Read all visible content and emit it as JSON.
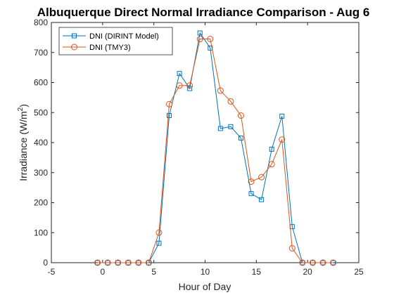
{
  "chart_data": {
    "type": "line",
    "title": "Albuquerque Direct Normal Irradiance Comparison - Aug 6",
    "xlabel": "Hour of Day",
    "ylabel_main": "Irradiance (W/m",
    "ylabel_sup": "2",
    "ylabel_close": ")",
    "xlim": [
      -5,
      25
    ],
    "ylim": [
      0,
      800
    ],
    "xticks": [
      -5,
      0,
      5,
      10,
      15,
      20,
      25
    ],
    "yticks": [
      0,
      100,
      200,
      300,
      400,
      500,
      600,
      700,
      800
    ],
    "grid": false,
    "legend_position": "top-left",
    "series": [
      {
        "name": "DNI (DIRINT Model)",
        "color": "#0072BD",
        "marker": "square",
        "x": [
          -0.5,
          0.5,
          1.5,
          2.5,
          3.5,
          4.5,
          5.5,
          6.5,
          7.5,
          8.5,
          9.5,
          10.5,
          11.5,
          12.5,
          13.5,
          14.5,
          15.5,
          16.5,
          17.5,
          18.5,
          19.5,
          20.5,
          21.5,
          22.5
        ],
        "y": [
          0,
          0,
          0,
          0,
          0,
          0,
          65,
          490,
          630,
          580,
          765,
          715,
          447,
          453,
          415,
          230,
          210,
          378,
          488,
          120,
          0,
          0,
          0,
          0
        ]
      },
      {
        "name": "DNI (TMY3)",
        "color": "#D95319",
        "marker": "circle",
        "x": [
          -0.5,
          0.5,
          1.5,
          2.5,
          3.5,
          4.5,
          5.5,
          6.5,
          7.5,
          8.5,
          9.5,
          10.5,
          11.5,
          12.5,
          13.5,
          14.5,
          15.5,
          16.5,
          17.5,
          18.5,
          19.5,
          20.5,
          21.5,
          22.5
        ],
        "y": [
          0,
          0,
          0,
          0,
          0,
          0,
          100,
          528,
          590,
          590,
          745,
          745,
          573,
          537,
          490,
          270,
          285,
          328,
          410,
          48,
          0,
          0,
          0,
          0
        ]
      }
    ]
  }
}
